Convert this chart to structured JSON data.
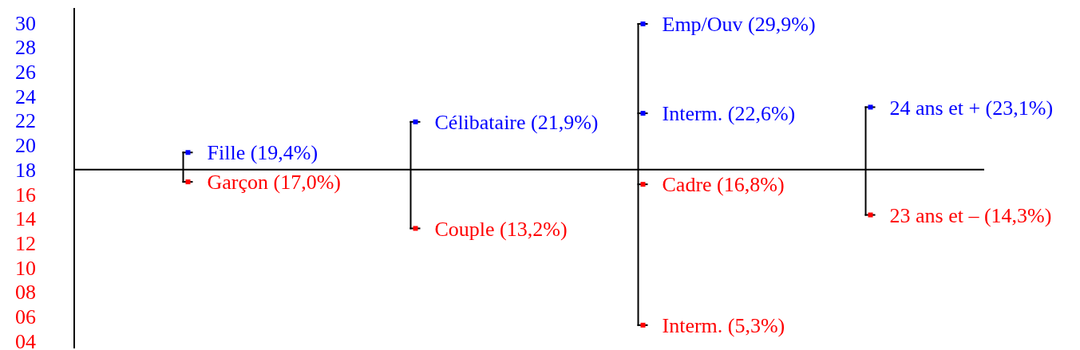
{
  "chart_data": {
    "type": "scatter",
    "categories": [
      null,
      null,
      null,
      null
    ],
    "series": [
      {
        "color": "#0000ff",
        "values": [
          19.4,
          21.9,
          29.9,
          23.1
        ],
        "value_labels": [
          "Fille (19,4%)",
          "Célibataire (21,9%)",
          "Emp/Ouv (29,9%)",
          "24 ans et + (23,1%)"
        ]
      },
      {
        "color": "#0000ff",
        "values": [
          null,
          null,
          22.6,
          null
        ],
        "value_labels": [
          null,
          null,
          "Interm. (22,6%)",
          null
        ]
      },
      {
        "color": "#ff0000",
        "values": [
          17.0,
          13.2,
          16.8,
          14.3
        ],
        "value_labels": [
          "Garçon (17,0%)",
          "Couple (13,2%)",
          "Cadre (16,8%)",
          "23 ans et – (14,3%)"
        ]
      },
      {
        "color": "#ff0000",
        "values": [
          null,
          null,
          5.3,
          null
        ],
        "value_labels": [
          null,
          null,
          "Interm. (5,3%)",
          null
        ]
      }
    ],
    "marker": "square",
    "ylim": [
      3.4,
      31.2
    ],
    "yticks": [
      {
        "value": 4,
        "label": "04"
      },
      {
        "value": 6,
        "label": "06"
      },
      {
        "value": 8,
        "label": "08"
      },
      10,
      12,
      14,
      16,
      18,
      20,
      22,
      24,
      26,
      28,
      30
    ],
    "ref_lines": [
      {
        "axis": "y",
        "value": 18,
        "color": "#000000"
      }
    ],
    "tick_labels": "y"
  }
}
